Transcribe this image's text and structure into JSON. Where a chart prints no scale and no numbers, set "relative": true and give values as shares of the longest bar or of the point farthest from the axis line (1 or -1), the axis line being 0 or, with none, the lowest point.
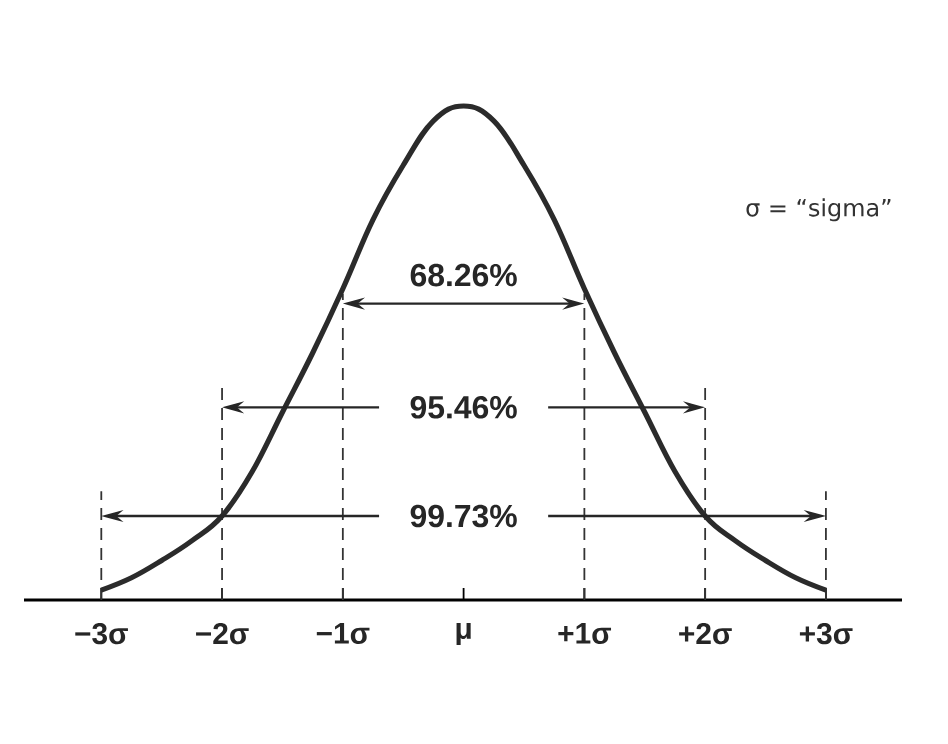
{
  "chart_data": {
    "type": "line",
    "relative": true,
    "color": "#2b2b2b",
    "line_style": "solid",
    "x": [
      -3,
      -2.75,
      -2.5,
      -2.25,
      -2,
      -1.75,
      -1.5,
      -1.25,
      -1,
      -0.75,
      -0.5,
      -0.25,
      0,
      0.25,
      0.5,
      0.75,
      1,
      1.25,
      1.5,
      1.75,
      2,
      2.25,
      2.5,
      2.75,
      3
    ],
    "values": [
      0.02,
      0.045,
      0.08,
      0.12,
      0.17,
      0.26,
      0.38,
      0.5,
      0.63,
      0.77,
      0.88,
      0.97,
      1,
      0.97,
      0.88,
      0.77,
      0.63,
      0.5,
      0.38,
      0.26,
      0.17,
      0.12,
      0.08,
      0.045,
      0.02
    ],
    "xlim": [
      -3.64,
      3.63
    ],
    "xticks": [
      {
        "value": -3,
        "label": "−3σ"
      },
      {
        "value": -2,
        "label": "−2σ"
      },
      {
        "value": -1,
        "label": "−1σ"
      },
      {
        "value": 0,
        "label": "μ"
      },
      {
        "value": 1,
        "label": "+1σ"
      },
      {
        "value": 2,
        "label": "+2σ"
      },
      {
        "value": 3,
        "label": "+3σ"
      }
    ],
    "ref_lines": [
      {
        "axis": "x",
        "value": -3,
        "line_style": "dashed",
        "color": "#333333"
      },
      {
        "axis": "x",
        "value": -2,
        "line_style": "dashed",
        "color": "#333333"
      },
      {
        "axis": "x",
        "value": -1,
        "line_style": "dashed",
        "color": "#333333"
      },
      {
        "axis": "x",
        "value": 1,
        "line_style": "dashed",
        "color": "#333333"
      },
      {
        "axis": "x",
        "value": 2,
        "line_style": "dashed",
        "color": "#333333"
      },
      {
        "axis": "x",
        "value": 3,
        "line_style": "dashed",
        "color": "#333333"
      }
    ],
    "annotations": [
      "σ = “sigma”",
      "68.26%",
      "95.46%",
      "99.73%"
    ]
  }
}
